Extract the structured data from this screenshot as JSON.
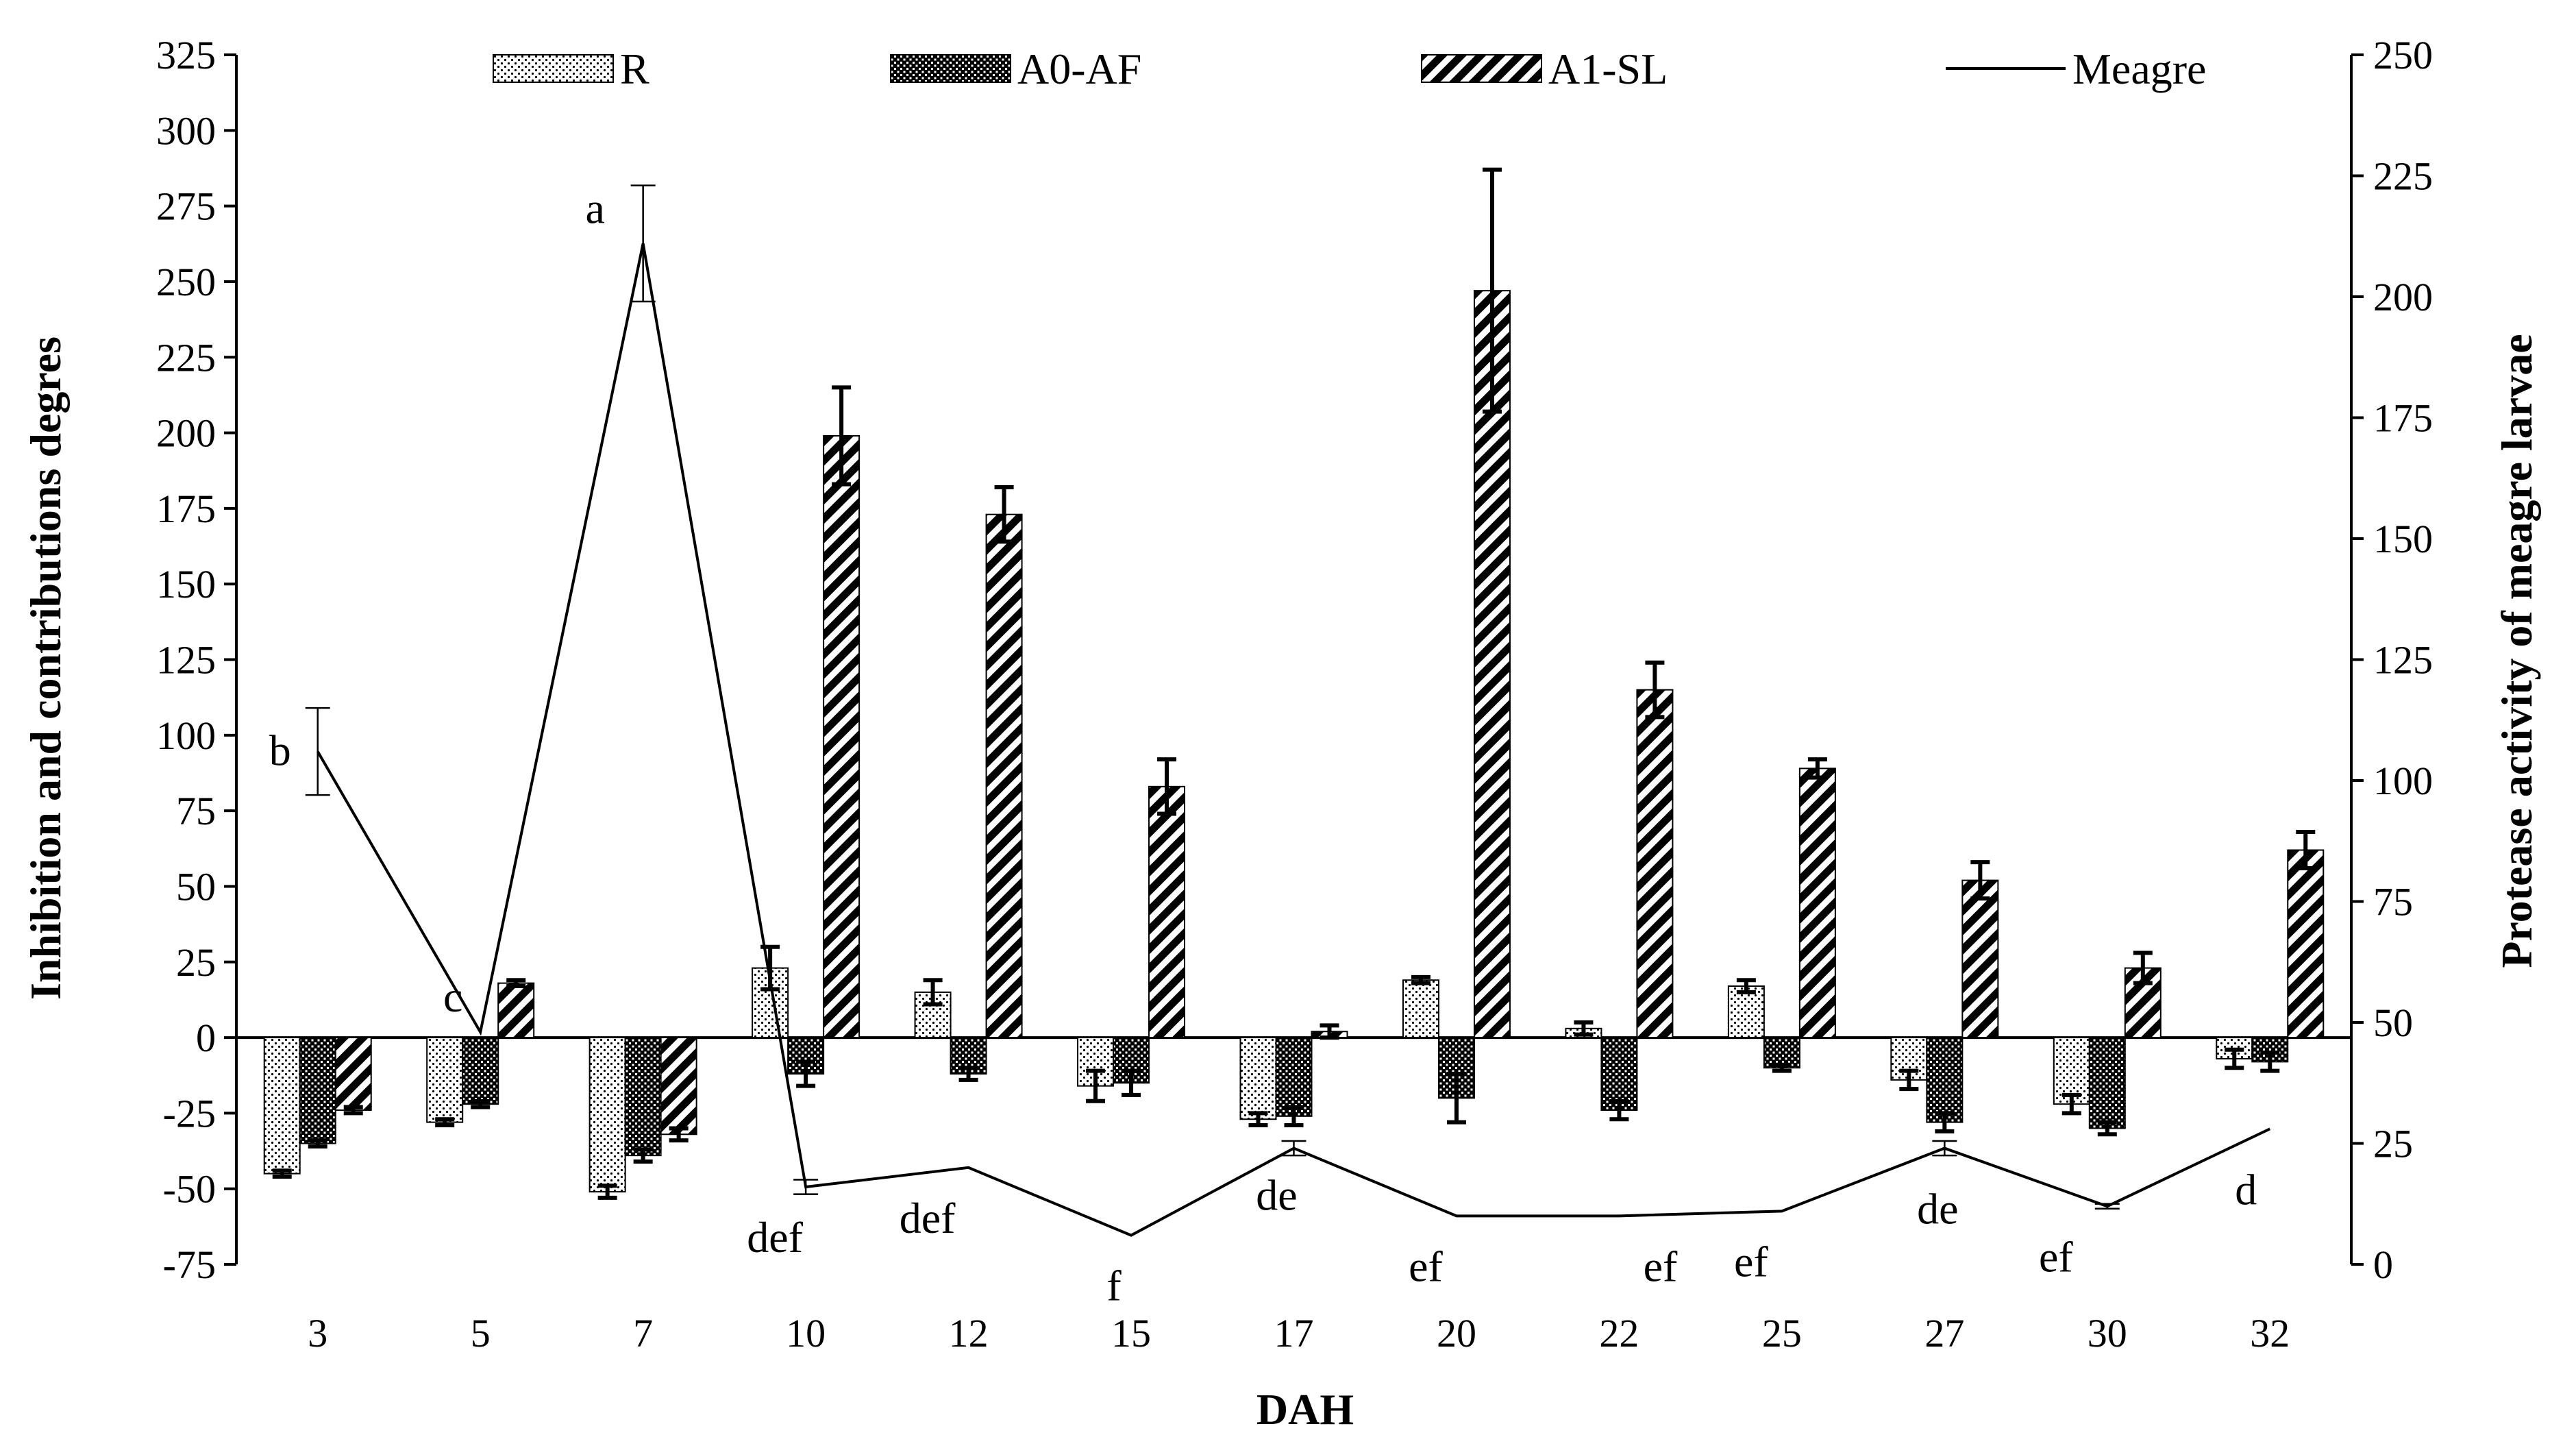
{
  "chart_data": {
    "type": "bar",
    "title": "",
    "xlabel": "DAH",
    "ylabel": "Inhibition and contributions degres",
    "y2label": "Protease activity of  meagre larvae",
    "ylim": [
      -75,
      325
    ],
    "y2lim": [
      0,
      250
    ],
    "yticks": [
      -75,
      -50,
      -25,
      0,
      25,
      50,
      75,
      100,
      125,
      150,
      175,
      200,
      225,
      250,
      275,
      300,
      325
    ],
    "y2ticks": [
      0,
      25,
      50,
      75,
      100,
      125,
      150,
      175,
      200,
      225,
      250
    ],
    "categories": [
      "3",
      "5",
      "7",
      "10",
      "12",
      "15",
      "17",
      "20",
      "22",
      "25",
      "27",
      "30",
      "32"
    ],
    "legend_position": "top",
    "series": [
      {
        "name": "R",
        "kind": "bar",
        "axis": "left",
        "pattern": "dots",
        "values": [
          -45,
          -28,
          -51,
          23,
          15,
          -16,
          -27,
          19,
          3,
          17,
          -14,
          -22,
          -7
        ],
        "errors": [
          1,
          1,
          2,
          7,
          4,
          5,
          2,
          1,
          2,
          2,
          3,
          3,
          3
        ]
      },
      {
        "name": "A0-AF",
        "kind": "bar",
        "axis": "left",
        "pattern": "checker",
        "values": [
          -35,
          -22,
          -39,
          -12,
          -12,
          -15,
          -26,
          -20,
          -24,
          -10,
          -28,
          -30,
          -8
        ],
        "errors": [
          1,
          1,
          2,
          4,
          2,
          4,
          3,
          8,
          3,
          1,
          3,
          2,
          3
        ]
      },
      {
        "name": "A1-SL",
        "kind": "bar",
        "axis": "left",
        "pattern": "diagonal",
        "values": [
          -24,
          18,
          -32,
          199,
          173,
          83,
          2,
          247,
          115,
          89,
          52,
          23,
          62
        ],
        "errors": [
          1,
          1,
          2,
          16,
          9,
          9,
          2,
          40,
          9,
          3,
          6,
          5,
          6
        ]
      },
      {
        "name": "Meagre",
        "kind": "line",
        "axis": "right",
        "values": [
          106,
          48,
          211,
          16,
          20,
          6,
          24,
          10,
          10,
          11,
          24,
          12,
          28
        ],
        "errors": [
          9,
          0,
          12,
          1.5,
          0,
          0,
          1.5,
          0,
          0,
          0,
          1.5,
          0.5,
          0
        ],
        "labels": [
          "b",
          "c",
          "a",
          "def",
          "def",
          "f",
          "de",
          "ef",
          "ef",
          "ef",
          "de",
          "ef",
          "d"
        ]
      }
    ]
  }
}
